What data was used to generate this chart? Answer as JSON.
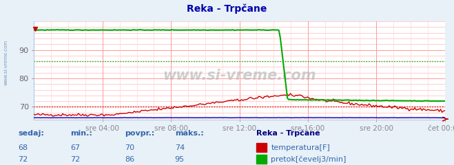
{
  "title": "Reka - Trpčane",
  "title_color": "#0000aa",
  "bg_color": "#e8f0f8",
  "plot_bg_color": "#ffffff",
  "grid_color_h": "#ff9999",
  "grid_color_v": "#ff9999",
  "watermark": "www.si-vreme.com",
  "x_tick_labels": [
    "sre 04:00",
    "sre 08:00",
    "sre 12:00",
    "sre 16:00",
    "sre 20:00",
    "čet 00:00"
  ],
  "ylim": [
    65.5,
    100
  ],
  "yticks": [
    70,
    80,
    90
  ],
  "temp_color": "#cc0000",
  "flow_color": "#00aa00",
  "height_color": "#0000cc",
  "legend_title": "Reka - Trpčane",
  "legend_title_color": "#000080",
  "label_color": "#3366aa",
  "sedaj_label": "sedaj:",
  "min_label": "min.:",
  "povpr_label": "povpr.:",
  "maks_label": "maks.:",
  "temp_sedaj": 68,
  "temp_min": 67,
  "temp_povpr": 70,
  "temp_maks": 74,
  "flow_sedaj": 72,
  "flow_min": 72,
  "flow_povpr": 86,
  "flow_maks": 95,
  "n_points": 288
}
